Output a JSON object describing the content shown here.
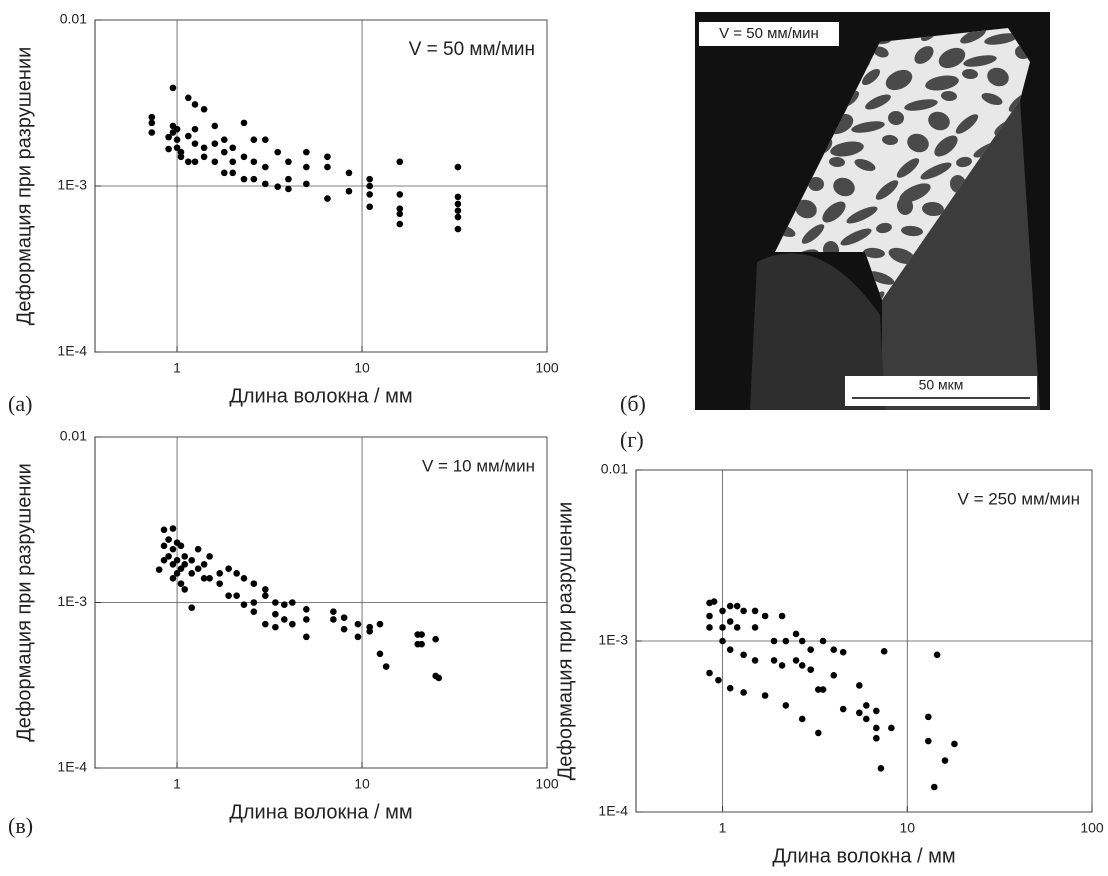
{
  "chart_data": [
    {
      "type": "scatter",
      "annotation": "V = 50 мм/мин",
      "xlabel": "Длина волокна / мм",
      "ylabel": "Деформация при разрушении",
      "log_x": true,
      "log_y": true,
      "grid": true,
      "color": "#000000",
      "xlim": [
        0.36,
        100
      ],
      "ylim": [
        0.0001,
        0.01
      ],
      "xticks": [
        1,
        10,
        100
      ],
      "yticks": [
        {
          "value": 0.0001,
          "label": "1E-4"
        },
        {
          "value": 0.001,
          "label": "1E-3"
        },
        0.01
      ],
      "x": [
        0.73,
        0.73,
        0.73,
        0.9,
        0.9,
        0.95,
        0.95,
        0.95,
        1.0,
        1.0,
        1.0,
        1.05,
        1.05,
        1.15,
        1.15,
        1.15,
        1.25,
        1.25,
        1.25,
        1.25,
        1.4,
        1.4,
        1.4,
        1.6,
        1.6,
        1.6,
        1.8,
        1.8,
        1.8,
        2.0,
        2.0,
        2.0,
        2.3,
        2.3,
        2.3,
        2.6,
        2.6,
        2.6,
        3.0,
        3.0,
        3.0,
        3.5,
        3.5,
        4.0,
        4.0,
        4.0,
        5.0,
        5.0,
        5.0,
        6.5,
        6.5,
        6.5,
        8.5,
        8.5,
        11,
        11,
        11,
        11,
        16,
        16,
        16,
        16,
        16,
        33,
        33,
        33,
        33,
        33,
        33
      ],
      "values": [
        0.0026,
        0.0024,
        0.0021,
        0.00197,
        0.00167,
        0.0039,
        0.0023,
        0.0021,
        0.0022,
        0.0019,
        0.0017,
        0.0016,
        0.0015,
        0.0034,
        0.002,
        0.0014,
        0.0031,
        0.0022,
        0.0018,
        0.0014,
        0.0029,
        0.0017,
        0.0015,
        0.0023,
        0.0018,
        0.0014,
        0.0019,
        0.0016,
        0.0012,
        0.0017,
        0.0014,
        0.0012,
        0.0024,
        0.0015,
        0.0011,
        0.0019,
        0.0014,
        0.0011,
        0.0019,
        0.0013,
        0.00103,
        0.0016,
        0.00099,
        0.0014,
        0.0011,
        0.00096,
        0.0016,
        0.0013,
        0.00103,
        0.0015,
        0.0013,
        0.00084,
        0.0012,
        0.00093,
        0.0011,
        0.001,
        0.00089,
        0.00075,
        0.0014,
        0.00089,
        0.00073,
        0.00068,
        0.00059,
        0.0013,
        0.00086,
        0.00078,
        0.00071,
        0.00065,
        0.00055
      ]
    },
    {
      "type": "scatter",
      "annotation": "V = 10 мм/мин",
      "xlabel": "Длина волокна / мм",
      "ylabel": "Деформация при разрушении",
      "log_x": true,
      "log_y": true,
      "grid": true,
      "color": "#000000",
      "xlim": [
        0.36,
        100
      ],
      "ylim": [
        0.0001,
        0.01
      ],
      "xticks": [
        1,
        10,
        100
      ],
      "yticks": [
        {
          "value": 0.0001,
          "label": "1E-4"
        },
        {
          "value": 0.001,
          "label": "1E-3"
        },
        0.01
      ],
      "x": [
        0.8,
        0.85,
        0.85,
        0.85,
        0.9,
        0.9,
        0.95,
        0.95,
        0.95,
        0.95,
        1.0,
        1.0,
        1.0,
        1.05,
        1.05,
        1.05,
        1.1,
        1.1,
        1.1,
        1.2,
        1.2,
        1.2,
        1.3,
        1.3,
        1.4,
        1.4,
        1.5,
        1.5,
        1.7,
        1.7,
        1.9,
        1.9,
        2.1,
        2.1,
        2.3,
        2.3,
        2.6,
        2.6,
        2.6,
        3.0,
        3.0,
        3.0,
        3.4,
        3.4,
        3.4,
        3.8,
        3.8,
        4.2,
        4.2,
        5.0,
        5.0,
        5.0,
        7.0,
        7.0,
        8.0,
        8.0,
        9.5,
        9.5,
        11,
        11,
        12.5,
        12.5,
        13.5,
        20,
        20,
        21,
        21,
        25,
        25,
        26
      ],
      "values": [
        0.00158,
        0.00275,
        0.0022,
        0.0018,
        0.0024,
        0.0019,
        0.0028,
        0.0021,
        0.0017,
        0.0014,
        0.0023,
        0.0018,
        0.0015,
        0.0022,
        0.0016,
        0.0013,
        0.0019,
        0.0017,
        0.0012,
        0.0018,
        0.0015,
        0.00093,
        0.0021,
        0.0016,
        0.0017,
        0.0014,
        0.0019,
        0.0014,
        0.0015,
        0.0013,
        0.0016,
        0.0011,
        0.0015,
        0.0011,
        0.0014,
        0.00097,
        0.0013,
        0.001,
        0.00088,
        0.0012,
        0.0011,
        0.00074,
        0.001,
        0.00085,
        0.00071,
        0.00097,
        0.00079,
        0.001,
        0.00074,
        0.00091,
        0.00079,
        0.00062,
        0.00088,
        0.00079,
        0.00081,
        0.00069,
        0.00074,
        0.00062,
        0.00071,
        0.00067,
        0.00074,
        0.00049,
        0.00041,
        0.00064,
        0.00056,
        0.00064,
        0.00056,
        0.0006,
        0.00036,
        0.00035
      ]
    },
    {
      "type": "scatter",
      "annotation": "V = 250 мм/мин",
      "xlabel": "Длина волокна / мм",
      "ylabel": "Деформация при разрушении",
      "log_x": true,
      "log_y": true,
      "grid": true,
      "color": "#000000",
      "xlim": [
        0.34,
        100
      ],
      "ylim": [
        0.0001,
        0.01
      ],
      "xticks": [
        1,
        10,
        100
      ],
      "yticks": [
        {
          "value": 0.0001,
          "label": "1E-4"
        },
        {
          "value": 0.001,
          "label": "1E-3"
        },
        0.01
      ],
      "x": [
        0.85,
        0.85,
        0.85,
        0.85,
        0.9,
        0.95,
        1.0,
        1.0,
        1.0,
        1.1,
        1.1,
        1.1,
        1.1,
        1.2,
        1.2,
        1.3,
        1.3,
        1.3,
        1.5,
        1.5,
        1.5,
        1.7,
        1.7,
        1.9,
        1.9,
        2.1,
        2.1,
        2.2,
        2.2,
        2.5,
        2.5,
        2.7,
        2.7,
        2.7,
        3.0,
        3.0,
        3.3,
        3.3,
        3.5,
        3.5,
        4.0,
        4.0,
        4.5,
        4.5,
        5.5,
        5.5,
        6.0,
        6.0,
        6.8,
        6.8,
        6.8,
        7.2,
        7.5,
        8.2,
        13,
        13,
        14,
        14.5,
        16,
        18
      ],
      "values": [
        0.00167,
        0.0014,
        0.0012,
        0.00065,
        0.0017,
        0.00059,
        0.0015,
        0.0012,
        0.001,
        0.0016,
        0.0013,
        0.00089,
        0.00053,
        0.0016,
        0.0012,
        0.0015,
        0.00083,
        0.0005,
        0.0015,
        0.0012,
        0.00077,
        0.0014,
        0.00048,
        0.001,
        0.00077,
        0.0014,
        0.00072,
        0.001,
        0.00042,
        0.0011,
        0.00077,
        0.001,
        0.00072,
        0.00035,
        0.00089,
        0.00068,
        0.00052,
        0.00029,
        0.001,
        0.00052,
        0.00089,
        0.00063,
        0.00086,
        0.0004,
        0.00055,
        0.00038,
        0.00042,
        0.00035,
        0.00039,
        0.00031,
        0.00027,
        0.00018,
        0.00087,
        0.00031,
        0.00036,
        0.00026,
        0.00014,
        0.00083,
        0.0002,
        0.00025
      ]
    }
  ],
  "micrograph": {
    "label": "V = 50 мм/мин",
    "scale_bar": "50 мкм"
  },
  "panel_labels": [
    "(а)",
    "(б)",
    "(в)",
    "(г)"
  ]
}
